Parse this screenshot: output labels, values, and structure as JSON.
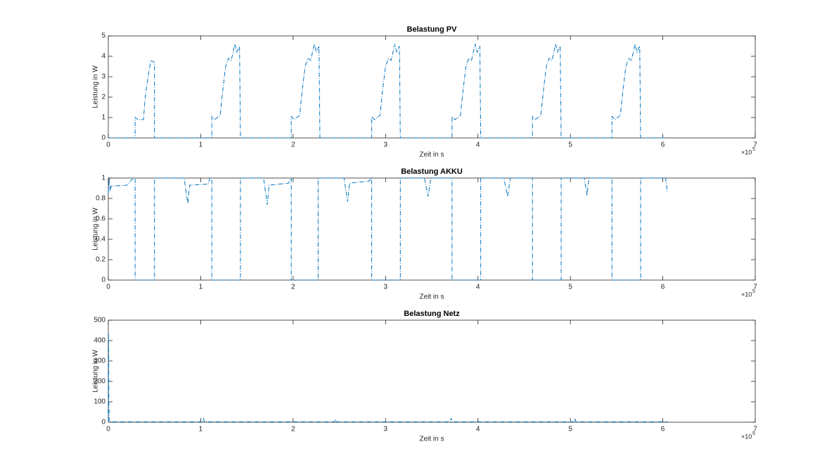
{
  "chart_data": [
    {
      "type": "line",
      "title": "Belastung PV",
      "xlabel": "Zeit in s",
      "ylabel": "Leistung in W",
      "x_scale_base": "×10",
      "x_scale_power": "5",
      "xlim": [
        0,
        7
      ],
      "xticks": [
        0,
        1,
        2,
        3,
        4,
        5,
        6,
        7
      ],
      "ylim": [
        0,
        5
      ],
      "yticks": [
        0,
        1,
        2,
        3,
        4,
        5
      ],
      "grid": false,
      "series": [
        {
          "color": "#0072BD",
          "x": [
            0,
            0.29,
            0.29,
            0.32,
            0.38,
            0.4,
            0.43,
            0.46,
            0.5,
            0.5,
            1.12,
            1.12,
            1.15,
            1.21,
            1.24,
            1.27,
            1.3,
            1.33,
            1.37,
            1.39,
            1.42,
            1.43,
            1.98,
            1.98,
            2.01,
            2.07,
            2.1,
            2.13,
            2.16,
            2.19,
            2.23,
            2.25,
            2.28,
            2.29,
            2.85,
            2.85,
            2.88,
            2.94,
            2.97,
            3.0,
            3.03,
            3.06,
            3.1,
            3.12,
            3.15,
            3.16,
            3.72,
            3.72,
            3.75,
            3.81,
            3.84,
            3.87,
            3.9,
            3.93,
            3.97,
            3.99,
            4.02,
            4.03,
            4.59,
            4.59,
            4.62,
            4.68,
            4.71,
            4.74,
            4.77,
            4.8,
            4.84,
            4.86,
            4.89,
            4.9,
            5.45,
            5.45,
            5.48,
            5.54,
            5.57,
            5.6,
            5.63,
            5.66,
            5.7,
            5.72,
            5.75,
            5.76,
            6.05
          ],
          "values": [
            0,
            0,
            1.0,
            0.9,
            0.9,
            2.0,
            3.0,
            3.8,
            3.7,
            0,
            0,
            1.05,
            0.9,
            1.1,
            2.4,
            3.5,
            3.9,
            3.8,
            4.6,
            4.2,
            4.5,
            0,
            0,
            1.05,
            0.9,
            1.1,
            2.4,
            3.5,
            3.9,
            3.8,
            4.6,
            4.2,
            4.5,
            0,
            0,
            1.05,
            0.9,
            1.1,
            2.4,
            3.5,
            3.9,
            3.8,
            4.6,
            4.2,
            4.5,
            0,
            0,
            1.05,
            0.9,
            1.1,
            2.4,
            3.5,
            3.9,
            3.8,
            4.6,
            4.2,
            4.5,
            0,
            0,
            1.05,
            0.9,
            1.1,
            2.4,
            3.5,
            3.9,
            3.8,
            4.6,
            4.2,
            4.5,
            0,
            0,
            1.05,
            0.9,
            1.1,
            2.4,
            3.5,
            3.9,
            3.8,
            4.6,
            4.2,
            4.5,
            0,
            0
          ]
        }
      ]
    },
    {
      "type": "line",
      "title": "Belastung AKKU",
      "xlabel": "Zeit in s",
      "ylabel": "Leistung in W",
      "x_scale_base": "×10",
      "x_scale_power": "5",
      "xlim": [
        0,
        7
      ],
      "xticks": [
        0,
        1,
        2,
        3,
        4,
        5,
        6,
        7
      ],
      "ylim": [
        0,
        1
      ],
      "yticks": [
        0,
        0.2,
        0.4,
        0.6,
        0.8,
        1
      ],
      "grid": false,
      "series": [
        {
          "color": "#0072BD",
          "x": [
            0,
            0.01,
            0.02,
            0.03,
            0.2,
            0.27,
            0.29,
            0.29,
            0.5,
            0.5,
            0.82,
            0.86,
            0.88,
            1.08,
            1.1,
            1.12,
            1.12,
            1.43,
            1.43,
            1.68,
            1.72,
            1.74,
            1.95,
            1.98,
            1.98,
            2.27,
            2.27,
            2.55,
            2.59,
            2.61,
            2.82,
            2.85,
            2.85,
            3.16,
            3.16,
            3.42,
            3.46,
            3.49,
            3.72,
            3.72,
            4.03,
            4.03,
            4.28,
            4.32,
            4.35,
            4.59,
            4.59,
            4.9,
            4.9,
            5.15,
            5.18,
            5.2,
            5.45,
            5.45,
            5.76,
            5.76,
            6.03,
            6.05
          ],
          "values": [
            0.85,
            1.0,
            0.87,
            0.92,
            0.93,
            1.0,
            1.0,
            0,
            0,
            1,
            1,
            0.75,
            0.93,
            0.94,
            1.0,
            1,
            0,
            0,
            1,
            1,
            0.74,
            0.93,
            0.95,
            1,
            0,
            0,
            1,
            1,
            0.77,
            0.95,
            0.97,
            1,
            0,
            0,
            1,
            1,
            0.82,
            1,
            1,
            0,
            0,
            1,
            1,
            0.82,
            1,
            1,
            0,
            0,
            1,
            1,
            0.83,
            1,
            1,
            0,
            0,
            1,
            1,
            0.86
          ]
        }
      ]
    },
    {
      "type": "line",
      "title": "Belastung Netz",
      "xlabel": "Zeit in s",
      "ylabel": "Leistung in W",
      "x_scale_base": "×10",
      "x_scale_power": "5",
      "xlim": [
        0,
        7
      ],
      "xticks": [
        0,
        1,
        2,
        3,
        4,
        5,
        6,
        7
      ],
      "ylim": [
        0,
        500
      ],
      "yticks": [
        0,
        100,
        200,
        300,
        400,
        500
      ],
      "grid": false,
      "series": [
        {
          "color": "#0072BD",
          "x": [
            0,
            0.003,
            0.006,
            0.01,
            0.02,
            1.02,
            1.03,
            1.04,
            2.45,
            2.46,
            2.47,
            3.7,
            3.71,
            3.72,
            5.04,
            5.05,
            5.06,
            6.05
          ],
          "values": [
            0,
            430,
            100,
            5,
            2,
            2,
            18,
            2,
            2,
            15,
            2,
            2,
            20,
            2,
            2,
            18,
            2,
            2
          ]
        }
      ]
    }
  ]
}
